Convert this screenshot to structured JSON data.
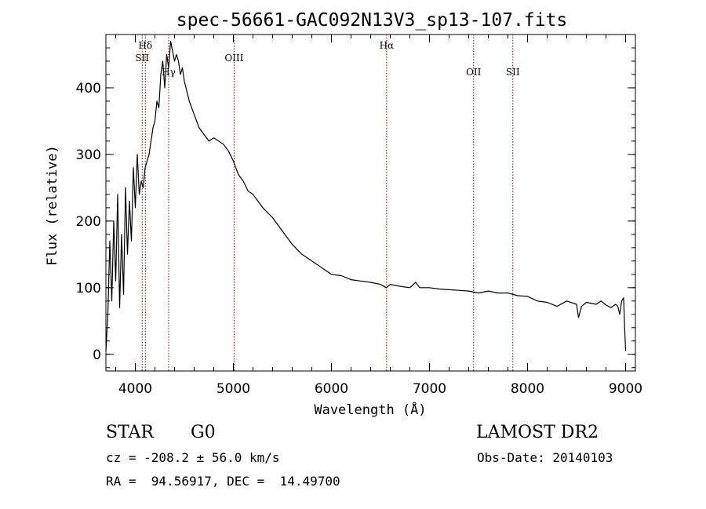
{
  "chart_data": {
    "type": "line",
    "title": "spec-56661-GAC092N13V3_sp13-107.fits",
    "xlabel": "Wavelength (Å)",
    "ylabel": "Flux (relative)",
    "xlim": [
      3700,
      9100
    ],
    "ylim": [
      -25,
      480
    ],
    "xticks": [
      4000,
      5000,
      6000,
      7000,
      8000,
      9000
    ],
    "yticks": [
      0,
      100,
      200,
      300,
      400
    ],
    "grid": false,
    "series": [
      {
        "color": "#000000",
        "x": [
          3700,
          3720,
          3740,
          3760,
          3780,
          3800,
          3820,
          3840,
          3860,
          3880,
          3900,
          3920,
          3940,
          3960,
          3980,
          4000,
          4020,
          4040,
          4060,
          4080,
          4100,
          4120,
          4140,
          4160,
          4180,
          4200,
          4220,
          4240,
          4260,
          4280,
          4300,
          4320,
          4340,
          4360,
          4380,
          4400,
          4420,
          4440,
          4460,
          4480,
          4500,
          4550,
          4600,
          4650,
          4700,
          4750,
          4800,
          4850,
          4900,
          4950,
          5000,
          5050,
          5100,
          5150,
          5200,
          5250,
          5300,
          5400,
          5500,
          5600,
          5700,
          5800,
          5900,
          6000,
          6100,
          6200,
          6300,
          6400,
          6500,
          6560,
          6600,
          6700,
          6800,
          6860,
          6900,
          7000,
          7100,
          7200,
          7300,
          7400,
          7500,
          7600,
          7700,
          7800,
          7900,
          8000,
          8100,
          8200,
          8300,
          8400,
          8500,
          8520,
          8550,
          8600,
          8700,
          8750,
          8800,
          8850,
          8900,
          8920,
          8940,
          8960,
          8980,
          8990,
          9000
        ],
        "y": [
          5,
          60,
          170,
          80,
          200,
          110,
          240,
          70,
          180,
          90,
          250,
          150,
          230,
          170,
          280,
          220,
          300,
          240,
          260,
          250,
          280,
          290,
          300,
          320,
          340,
          350,
          380,
          370,
          420,
          440,
          400,
          450,
          430,
          470,
          455,
          440,
          450,
          440,
          420,
          430,
          410,
          380,
          360,
          340,
          330,
          320,
          325,
          320,
          315,
          305,
          290,
          270,
          260,
          245,
          240,
          230,
          220,
          205,
          185,
          165,
          150,
          140,
          130,
          120,
          118,
          112,
          110,
          108,
          105,
          100,
          105,
          102,
          100,
          108,
          100,
          100,
          98,
          97,
          96,
          95,
          92,
          95,
          92,
          92,
          88,
          87,
          80,
          78,
          72,
          80,
          75,
          55,
          72,
          78,
          75,
          80,
          74,
          70,
          75,
          72,
          60,
          80,
          85,
          40,
          5
        ]
      }
    ],
    "line_markers": [
      {
        "label": "Hδ",
        "wavelength": 4102,
        "label_row": "top"
      },
      {
        "label": "SII",
        "wavelength": 4070,
        "label_row": "second"
      },
      {
        "label": "Hγ",
        "wavelength": 4340,
        "label_row": "third"
      },
      {
        "label": "OIII",
        "wavelength": 5007,
        "label_row": "second"
      },
      {
        "label": "Hα",
        "wavelength": 6563,
        "label_row": "top"
      },
      {
        "label": "OII",
        "wavelength": 7450,
        "label_row": "fourth"
      },
      {
        "label": "SII",
        "wavelength": 7850,
        "label_row": "fourth"
      }
    ],
    "marker_color": "#8b0000"
  },
  "info": {
    "object_class": "STAR",
    "subclass": "G0",
    "survey": "LAMOST DR2",
    "redshift_line": "cz = -208.2 ± 56.0 km/s",
    "obs_date_line": "Obs-Date: 20140103",
    "coords_line": "RA =  94.56917, DEC =  14.49700"
  }
}
